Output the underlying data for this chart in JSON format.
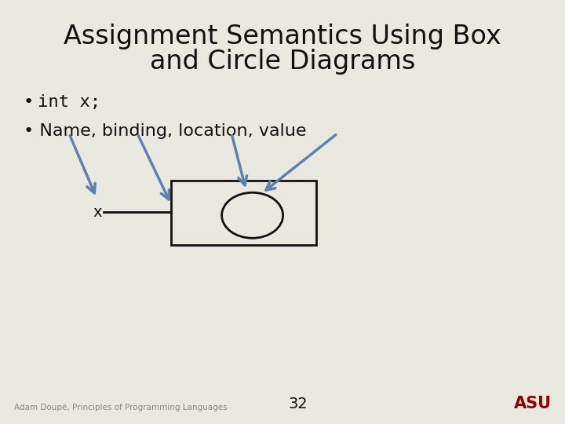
{
  "title_line1": "Assignment Semantics Using Box",
  "title_line2": "and Circle Diagrams",
  "bg_color": "#eae9e0",
  "title_fontsize": 24,
  "title_color": "#111111",
  "bullet1_bullet": "•",
  "bullet1_text": " int x;",
  "bullet2_text": "• Name, binding, location, value",
  "bullet_fontsize": 16,
  "x_label": "x",
  "arrow_color": "#6080b0",
  "box_color": "#111111",
  "footer_text": "Adam Doupé, Principles of Programming Languages",
  "page_num": "32",
  "asu_text": "ASU",
  "asu_color": "#8b0000"
}
